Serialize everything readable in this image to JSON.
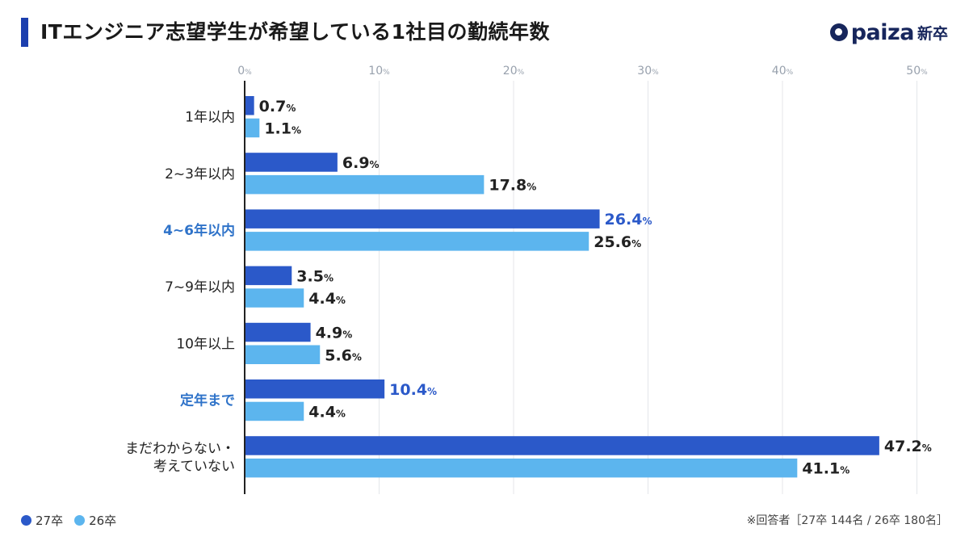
{
  "header": {
    "title": "ITエンジニア志望学生が希望している1社目の勤続年数",
    "logo_text": "paiza",
    "logo_sub": "新卒"
  },
  "footer": {
    "note": "※回答者［27卒 144名 / 26卒 180名］"
  },
  "chart_data": {
    "type": "bar",
    "orientation": "horizontal",
    "title": "ITエンジニア志望学生が希望している1社目の勤続年数",
    "xlabel": "",
    "ylabel": "",
    "xlim": [
      0,
      50
    ],
    "xticks": [
      0,
      10,
      20,
      30,
      40,
      50
    ],
    "tick_suffix": "%",
    "value_suffix": "%",
    "grid": true,
    "legend_position": "bottom-left",
    "categories": [
      [
        "1年以内"
      ],
      [
        "2~3年以内"
      ],
      [
        "4~6年以内"
      ],
      [
        "7~9年以内"
      ],
      [
        "10年以上"
      ],
      [
        "定年まで"
      ],
      [
        "まだわからない・",
        "考えていない"
      ]
    ],
    "highlighted_categories": [
      "4~6年以内",
      "定年まで"
    ],
    "highlight_color": "#2f73c9",
    "series": [
      {
        "name": "27卒",
        "color": "#2b59c9",
        "values": [
          0.7,
          6.9,
          26.4,
          3.5,
          4.9,
          10.4,
          47.2
        ]
      },
      {
        "name": "26卒",
        "color": "#5cb5ee",
        "values": [
          1.1,
          17.8,
          25.6,
          4.4,
          5.6,
          4.4,
          41.1
        ]
      }
    ],
    "highlighted_labels": [
      {
        "series": 0,
        "category": 2
      },
      {
        "series": 0,
        "category": 5
      }
    ]
  }
}
